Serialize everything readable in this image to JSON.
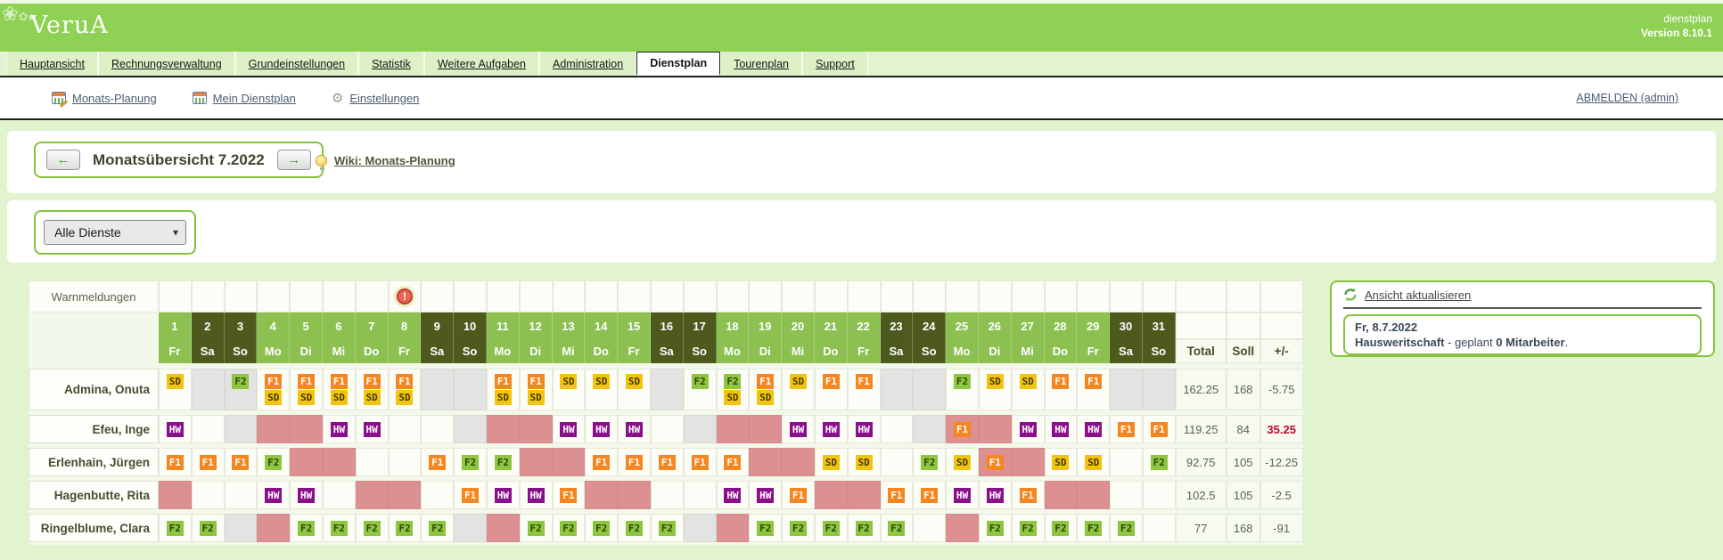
{
  "banner": {
    "logo": "VeruA",
    "app": "dienstplan",
    "version": "Version 8.10.1"
  },
  "tabs": [
    {
      "label": "Hauptansicht",
      "active": false
    },
    {
      "label": "Rechnungsverwaltung",
      "active": false
    },
    {
      "label": "Grundeinstellungen",
      "active": false
    },
    {
      "label": "Statistik",
      "active": false
    },
    {
      "label": "Weitere Aufgaben",
      "active": false
    },
    {
      "label": "Administration",
      "active": false
    },
    {
      "label": "Dienstplan",
      "active": true
    },
    {
      "label": "Tourenplan",
      "active": false
    },
    {
      "label": "Support",
      "active": false
    }
  ],
  "subnav": {
    "items": [
      {
        "icon": "calendar-pencil-icon",
        "label": "Monats-Planung"
      },
      {
        "icon": "calendar-icon",
        "label": "Mein Dienstplan"
      },
      {
        "icon": "gear-icon",
        "label": "Einstellungen"
      }
    ],
    "logout": "ABMELDEN (admin)"
  },
  "toolbar": {
    "title": "Monatsübersicht 7.2022",
    "wiki_link": "Wiki: Monats-Planung"
  },
  "filter": {
    "selected": "Alle Dienste"
  },
  "roster": {
    "warnings_label": "Warnmeldungen",
    "warning_day": 8,
    "warning_glyph": "!",
    "totals_headers": [
      "Total",
      "Soll",
      "+/-"
    ],
    "days": [
      {
        "n": "1",
        "d": "Fr",
        "we": false
      },
      {
        "n": "2",
        "d": "Sa",
        "we": true
      },
      {
        "n": "3",
        "d": "So",
        "we": true
      },
      {
        "n": "4",
        "d": "Mo",
        "we": false
      },
      {
        "n": "5",
        "d": "Di",
        "we": false
      },
      {
        "n": "6",
        "d": "Mi",
        "we": false
      },
      {
        "n": "7",
        "d": "Do",
        "we": false
      },
      {
        "n": "8",
        "d": "Fr",
        "we": false
      },
      {
        "n": "9",
        "d": "Sa",
        "we": true
      },
      {
        "n": "10",
        "d": "So",
        "we": true
      },
      {
        "n": "11",
        "d": "Mo",
        "we": false
      },
      {
        "n": "12",
        "d": "Di",
        "we": false
      },
      {
        "n": "13",
        "d": "Mi",
        "we": false
      },
      {
        "n": "14",
        "d": "Do",
        "we": false
      },
      {
        "n": "15",
        "d": "Fr",
        "we": false
      },
      {
        "n": "16",
        "d": "Sa",
        "we": true
      },
      {
        "n": "17",
        "d": "So",
        "we": true
      },
      {
        "n": "18",
        "d": "Mo",
        "we": false
      },
      {
        "n": "19",
        "d": "Di",
        "we": false
      },
      {
        "n": "20",
        "d": "Mi",
        "we": false
      },
      {
        "n": "21",
        "d": "Do",
        "we": false
      },
      {
        "n": "22",
        "d": "Fr",
        "we": false
      },
      {
        "n": "23",
        "d": "Sa",
        "we": true
      },
      {
        "n": "24",
        "d": "So",
        "we": true
      },
      {
        "n": "25",
        "d": "Mo",
        "we": false
      },
      {
        "n": "26",
        "d": "Di",
        "we": false
      },
      {
        "n": "27",
        "d": "Mi",
        "we": false
      },
      {
        "n": "28",
        "d": "Do",
        "we": false
      },
      {
        "n": "29",
        "d": "Fr",
        "we": false
      },
      {
        "n": "30",
        "d": "Sa",
        "we": true
      },
      {
        "n": "31",
        "d": "So",
        "we": true
      }
    ],
    "badge_colors": {
      "SD": {
        "bg": "#f2c40d",
        "fg": "#463a02"
      },
      "F1": {
        "bg": "#f6861f",
        "fg": "#ffffff"
      },
      "F2": {
        "bg": "#8dc63f",
        "fg": "#33430b"
      },
      "HW": {
        "bg": "#8a0f8a",
        "fg": "#ffffff"
      }
    },
    "employees": [
      {
        "name": "Admina, Onuta",
        "tall": true,
        "cells": [
          "SD",
          "g",
          "g:F2",
          "F1+SD",
          "F1+SD",
          "F1+SD",
          "F1+SD",
          "F1+SD",
          "g",
          "g",
          "F1+SD",
          "F1+SD",
          "SD",
          "SD",
          "SD",
          "g",
          "F2",
          "F2+SD",
          "F1+SD",
          "SD",
          "F1",
          "F1",
          "g",
          "g",
          "F2",
          "SD",
          "SD",
          "F1",
          "F1",
          "g",
          "g"
        ],
        "total": "162.25",
        "soll": "168",
        "diff": "-5.75",
        "diff_red": false
      },
      {
        "name": "Efeu, Inge",
        "tall": false,
        "cells": [
          "HW",
          "",
          "g",
          "p",
          "p",
          "HW",
          "HW",
          "",
          "",
          "g",
          "p",
          "p",
          "HW",
          "HW",
          "HW",
          "",
          "g",
          "p",
          "p",
          "HW",
          "HW",
          "HW",
          "",
          "g",
          "p:F1",
          "p",
          "HW",
          "HW",
          "HW",
          "F1",
          "F1"
        ],
        "total": "119.25",
        "soll": "84",
        "diff": "35.25",
        "diff_red": true
      },
      {
        "name": "Erlenhain, Jürgen",
        "tall": false,
        "cells": [
          "F1",
          "F1",
          "F1",
          "F2",
          "p",
          "p",
          "",
          "",
          "F1",
          "F2",
          "F2",
          "p",
          "p",
          "F1",
          "F1",
          "F1",
          "F1",
          "F1",
          "p",
          "p",
          "SD",
          "SD",
          "",
          "F2",
          "SD",
          "p:F1",
          "p",
          "SD",
          "SD",
          "",
          "F2"
        ],
        "total": "92.75",
        "soll": "105",
        "diff": "-12.25",
        "diff_red": false
      },
      {
        "name": "Hagenbutte, Rita",
        "tall": false,
        "cells": [
          "p",
          "",
          "",
          "HW",
          "HW",
          "",
          "p",
          "p",
          "",
          "F1",
          "HW",
          "HW",
          "F1",
          "p",
          "p",
          "",
          "",
          "HW",
          "HW",
          "F1",
          "p",
          "p",
          "F1",
          "F1",
          "HW",
          "HW",
          "F1",
          "p",
          "p",
          "",
          ""
        ],
        "total": "102.5",
        "soll": "105",
        "diff": "-2.5",
        "diff_red": false
      },
      {
        "name": "Ringelblume, Clara",
        "tall": false,
        "cells": [
          "F2",
          "F2",
          "g",
          "p",
          "F2",
          "F2",
          "F2",
          "F2",
          "F2",
          "g",
          "p",
          "F2",
          "F2",
          "F2",
          "F2",
          "F2",
          "g",
          "p",
          "F2",
          "F2",
          "F2",
          "F2",
          "F2",
          "",
          "p",
          "F2",
          "F2",
          "F2",
          "F2",
          "F2",
          ""
        ],
        "total": "77",
        "soll": "168",
        "diff": "-91",
        "diff_red": false
      }
    ]
  },
  "side": {
    "refresh": "Ansicht aktualisieren",
    "info_date": "Fr, 8.7.2022",
    "info_bold1": "Hausweritschaft",
    "info_mid": " - geplant ",
    "info_bold2": "0 Mitarbeiter",
    "info_end": "."
  }
}
